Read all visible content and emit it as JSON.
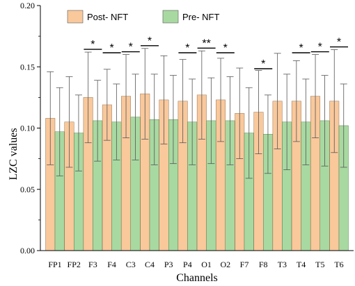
{
  "chart_data": {
    "type": "bar",
    "categories": [
      "FP1",
      "FP2",
      "F3",
      "F4",
      "C3",
      "C4",
      "P3",
      "P4",
      "O1",
      "O2",
      "F7",
      "F8",
      "T3",
      "T4",
      "T5",
      "T6"
    ],
    "series": [
      {
        "name": "Post- NFT",
        "color": "#F9C89B",
        "values": [
          0.108,
          0.105,
          0.125,
          0.119,
          0.126,
          0.128,
          0.123,
          0.122,
          0.127,
          0.123,
          0.112,
          0.113,
          0.122,
          0.122,
          0.126,
          0.122
        ],
        "errors": [
          0.038,
          0.037,
          0.037,
          0.029,
          0.034,
          0.037,
          0.036,
          0.034,
          0.036,
          0.034,
          0.037,
          0.034,
          0.039,
          0.033,
          0.034,
          0.042
        ]
      },
      {
        "name": "Pre- NFT",
        "color": "#A8D9A1",
        "values": [
          0.097,
          0.096,
          0.106,
          0.105,
          0.109,
          0.107,
          0.107,
          0.105,
          0.106,
          0.106,
          0.096,
          0.095,
          0.105,
          0.105,
          0.106,
          0.102
        ],
        "errors": [
          0.036,
          0.031,
          0.033,
          0.031,
          0.035,
          0.037,
          0.036,
          0.035,
          0.035,
          0.036,
          0.037,
          0.032,
          0.039,
          0.035,
          0.037,
          0.034
        ]
      }
    ],
    "significance": [
      "",
      "",
      "*",
      "*",
      "*",
      "*",
      "",
      "*",
      "**",
      "*",
      "",
      "*",
      "",
      "*",
      "*",
      "*"
    ],
    "xlabel": "Channels",
    "ylabel": "LZC values",
    "ylim": [
      0,
      0.2
    ],
    "yticks": [
      0.0,
      0.05,
      0.1,
      0.15,
      0.2
    ],
    "ytick_labels": [
      "0.00",
      "0.05",
      "0.10",
      "0.15",
      "0.20"
    ],
    "grid": false,
    "legend_position": "top"
  }
}
